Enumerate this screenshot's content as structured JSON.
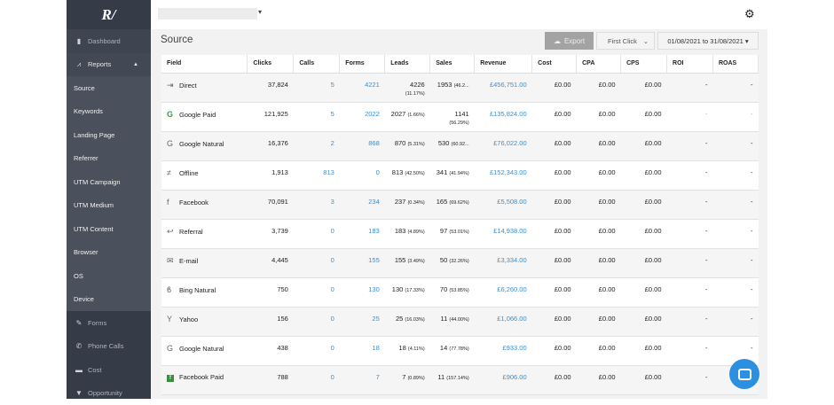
{
  "sidebar": {
    "logo": "R/",
    "items": [
      {
        "label": "Dashboard",
        "icon": "dashboard-icon"
      },
      {
        "label": "Reports",
        "icon": "chart-icon"
      },
      {
        "label": "Source"
      },
      {
        "label": "Keywords"
      },
      {
        "label": "Landing Page"
      },
      {
        "label": "Referrer"
      },
      {
        "label": "UTM Campaign"
      },
      {
        "label": "UTM Medium"
      },
      {
        "label": "UTM Content"
      },
      {
        "label": "Browser"
      },
      {
        "label": "OS"
      },
      {
        "label": "Device"
      },
      {
        "label": "Forms",
        "icon": "pencil-icon"
      },
      {
        "label": "Phone Calls",
        "icon": "phone-icon"
      },
      {
        "label": "Cost",
        "icon": "card-icon"
      },
      {
        "label": "Opportunity",
        "icon": "filter-icon"
      }
    ]
  },
  "page": {
    "title": "Source",
    "export_label": "Export",
    "attribution": "First Click",
    "date_range": "01/08/2021 to 31/08/2021"
  },
  "table": {
    "headers": [
      "Field",
      "Clicks",
      "Calls",
      "Forms",
      "Leads",
      "Sales",
      "Revenue",
      "Cost",
      "CPA",
      "CPS",
      "ROI",
      "ROAS"
    ],
    "rows": [
      {
        "field": "Direct",
        "icon": "sign-in-icon",
        "clicks": "37,824",
        "calls": "5",
        "forms": "4221",
        "leads": "4226",
        "leads_pct": "(11.17%)",
        "sales": "1953",
        "sales_pct": "(46.2...",
        "revenue": "£456,751.00",
        "cost": "£0.00",
        "cpa": "£0.00",
        "cps": "£0.00",
        "roi": "-",
        "roas": "-"
      },
      {
        "field": "Google Paid",
        "icon": "google-icon",
        "clicks": "121,925",
        "calls": "5",
        "forms": "2022",
        "leads": "2027",
        "leads_pct": "(1.66%)",
        "sales": "1141",
        "sales_pct": "(56.29%)",
        "revenue": "£135,824.00",
        "cost": "£0.00",
        "cpa": "£0.00",
        "cps": "£0.00",
        "roi": "-",
        "roas": "-"
      },
      {
        "field": "Google Natural",
        "icon": "google-icon",
        "clicks": "16,376",
        "calls": "2",
        "forms": "868",
        "leads": "870",
        "leads_pct": "(5.31%)",
        "sales": "530",
        "sales_pct": "(60.92...",
        "revenue": "£76,022.00",
        "cost": "£0.00",
        "cpa": "£0.00",
        "cps": "£0.00",
        "roi": "-",
        "roas": "-"
      },
      {
        "field": "Offline",
        "icon": "not-equal-icon",
        "clicks": "1,913",
        "calls": "813",
        "forms": "0",
        "leads": "813",
        "leads_pct": "(42.50%)",
        "sales": "341",
        "sales_pct": "(41.94%)",
        "revenue": "£152,343.00",
        "cost": "£0.00",
        "cpa": "£0.00",
        "cps": "£0.00",
        "roi": "-",
        "roas": "-"
      },
      {
        "field": "Facebook",
        "icon": "facebook-icon",
        "clicks": "70,091",
        "calls": "3",
        "forms": "234",
        "leads": "237",
        "leads_pct": "(0.34%)",
        "sales": "165",
        "sales_pct": "(69.62%)",
        "revenue": "£5,508.00",
        "cost": "£0.00",
        "cpa": "£0.00",
        "cps": "£0.00",
        "roi": "-",
        "roas": "-"
      },
      {
        "field": "Referral",
        "icon": "reply-icon",
        "clicks": "3,739",
        "calls": "0",
        "forms": "183",
        "leads": "183",
        "leads_pct": "(4.89%)",
        "sales": "97",
        "sales_pct": "(53.01%)",
        "revenue": "£14,938.00",
        "cost": "£0.00",
        "cpa": "£0.00",
        "cps": "£0.00",
        "roi": "-",
        "roas": "-"
      },
      {
        "field": "E-mail",
        "icon": "envelope-icon",
        "clicks": "4,445",
        "calls": "0",
        "forms": "155",
        "leads": "155",
        "leads_pct": "(3.49%)",
        "sales": "50",
        "sales_pct": "(32.26%)",
        "revenue": "£3,334.00",
        "cost": "£0.00",
        "cpa": "£0.00",
        "cps": "£0.00",
        "roi": "-",
        "roas": "-"
      },
      {
        "field": "Bing Natural",
        "icon": "bing-icon",
        "clicks": "750",
        "calls": "0",
        "forms": "130",
        "leads": "130",
        "leads_pct": "(17.33%)",
        "sales": "70",
        "sales_pct": "(53.85%)",
        "revenue": "£6,260.00",
        "cost": "£0.00",
        "cpa": "£0.00",
        "cps": "£0.00",
        "roi": "-",
        "roas": "-"
      },
      {
        "field": "Yahoo",
        "icon": "yahoo-icon",
        "clicks": "156",
        "calls": "0",
        "forms": "25",
        "leads": "25",
        "leads_pct": "(16.03%)",
        "sales": "11",
        "sales_pct": "(44.00%)",
        "revenue": "£1,066.00",
        "cost": "£0.00",
        "cpa": "£0.00",
        "cps": "£0.00",
        "roi": "-",
        "roas": "-"
      },
      {
        "field": "Google Natural",
        "icon": "google-icon",
        "clicks": "438",
        "calls": "0",
        "forms": "18",
        "leads": "18",
        "leads_pct": "(4.11%)",
        "sales": "14",
        "sales_pct": "(77.78%)",
        "revenue": "£933.00",
        "cost": "£0.00",
        "cpa": "£0.00",
        "cps": "£0.00",
        "roi": "-",
        "roas": "-"
      },
      {
        "field": "Facebook Paid",
        "icon": "facebook-paid-icon",
        "clicks": "788",
        "calls": "0",
        "forms": "7",
        "leads": "7",
        "leads_pct": "(0.89%)",
        "sales": "11",
        "sales_pct": "(157.14%)",
        "revenue": "£906.00",
        "cost": "£0.00",
        "cpa": "£0.00",
        "cps": "£0.00",
        "roi": "-",
        "roas": "-"
      }
    ]
  },
  "colors": {
    "sidebar": "#363c47",
    "link": "#3e8ed0",
    "chat": "#2d8fe0"
  }
}
